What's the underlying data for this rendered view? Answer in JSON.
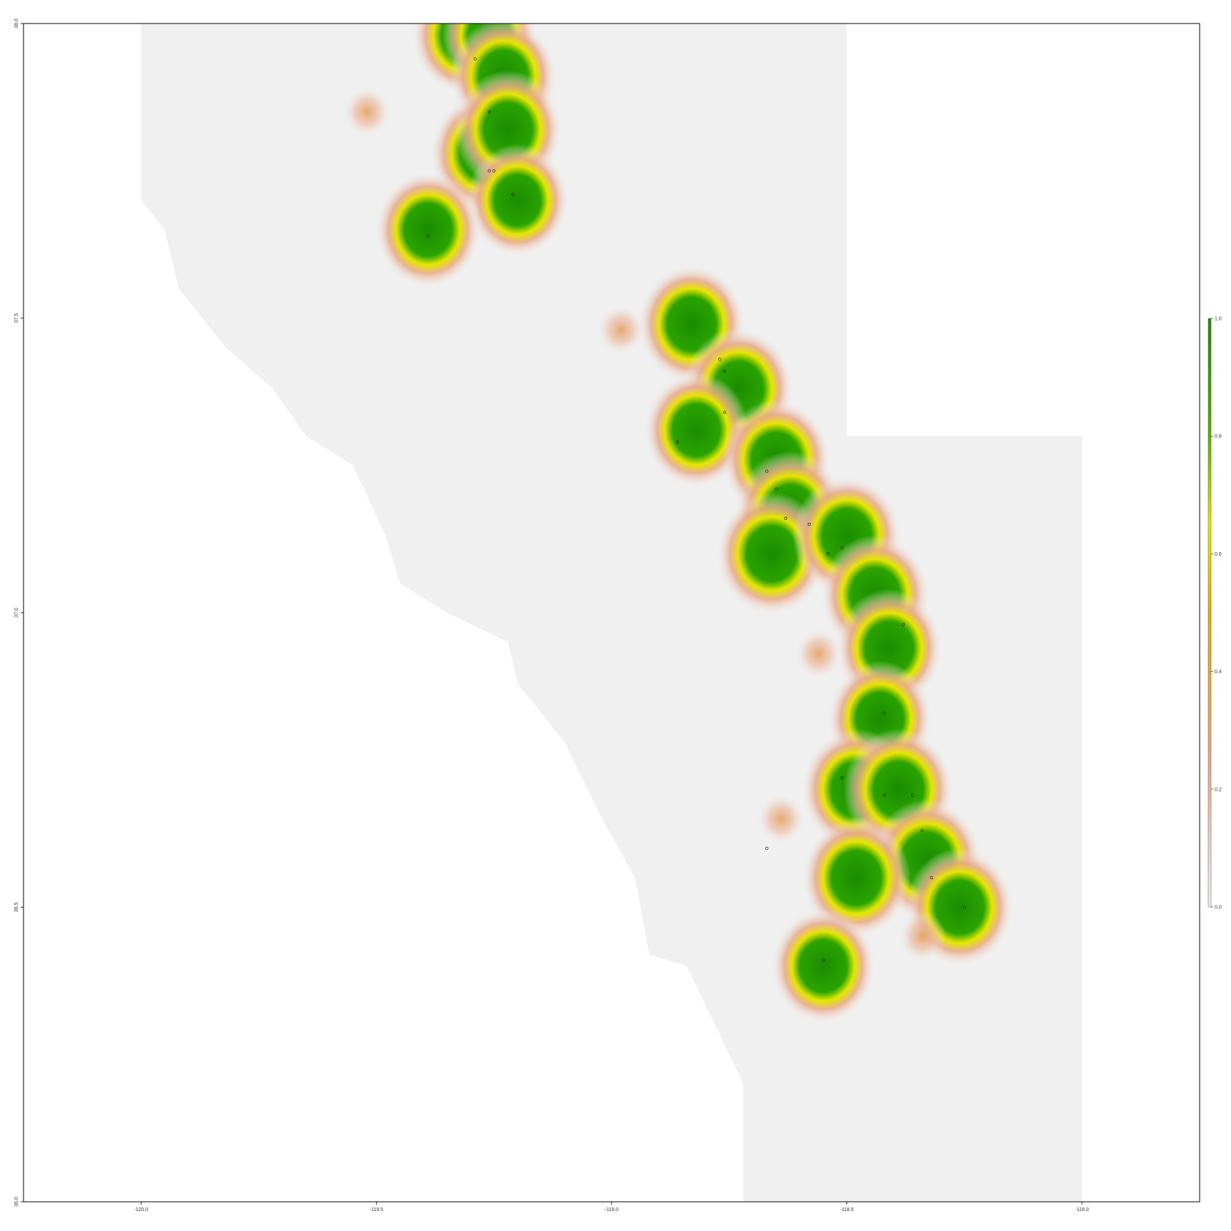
{
  "map": {
    "x_axis": {
      "range": [
        -120.25,
        -117.75
      ],
      "ticks": [
        {
          "value": -120.0,
          "label": "-120.0"
        },
        {
          "value": -119.5,
          "label": "-119.5"
        },
        {
          "value": -119.0,
          "label": "-119.0"
        },
        {
          "value": -118.5,
          "label": "-118.5"
        },
        {
          "value": -118.0,
          "label": "-118.0"
        }
      ]
    },
    "y_axis": {
      "range": [
        36.0,
        38.0
      ],
      "ticks": [
        {
          "value": 36.0,
          "label": "36.0"
        },
        {
          "value": 36.5,
          "label": "36.5"
        },
        {
          "value": 37.0,
          "label": "37.0"
        },
        {
          "value": 37.5,
          "label": "37.5"
        },
        {
          "value": 38.0,
          "label": "38.0"
        }
      ]
    },
    "colors": {
      "raster_background": "#f0f0f0",
      "low": "#e8a98a",
      "mid": "#f2d000",
      "high": "#1a8c00",
      "frame": "#000000"
    },
    "legend": {
      "placement": "right",
      "ticks": [
        {
          "value": 0.0,
          "label": "0.0"
        },
        {
          "value": 0.2,
          "label": "0.2"
        },
        {
          "value": 0.4,
          "label": "0.4"
        },
        {
          "value": 0.6,
          "label": "0.6"
        },
        {
          "value": 0.8,
          "label": "0.8"
        },
        {
          "value": 1.0,
          "label": "1.0"
        }
      ]
    },
    "domain_polygon": [
      [
        -120.0,
        38.0
      ],
      [
        -118.5,
        38.0
      ],
      [
        -118.5,
        37.3
      ],
      [
        -118.0,
        37.3
      ],
      [
        -118.0,
        36.0
      ],
      [
        -118.72,
        36.0
      ],
      [
        -118.72,
        36.2
      ],
      [
        -118.78,
        36.3
      ],
      [
        -118.84,
        36.4
      ],
      [
        -118.92,
        36.42
      ],
      [
        -118.95,
        36.55
      ],
      [
        -119.02,
        36.65
      ],
      [
        -119.1,
        36.78
      ],
      [
        -119.2,
        36.88
      ],
      [
        -119.22,
        36.95
      ],
      [
        -119.35,
        37.0
      ],
      [
        -119.45,
        37.05
      ],
      [
        -119.48,
        37.13
      ],
      [
        -119.55,
        37.25
      ],
      [
        -119.65,
        37.3
      ],
      [
        -119.72,
        37.38
      ],
      [
        -119.82,
        37.45
      ],
      [
        -119.92,
        37.55
      ],
      [
        -119.95,
        37.65
      ],
      [
        -120.0,
        37.7
      ]
    ],
    "suitability_hotspots": [
      {
        "lon": -119.31,
        "lat": 37.98,
        "value": 0.92
      },
      {
        "lon": -119.26,
        "lat": 37.98,
        "value": 0.6
      },
      {
        "lon": -119.23,
        "lat": 37.91,
        "value": 0.9
      },
      {
        "lon": -119.27,
        "lat": 37.78,
        "value": 0.95
      },
      {
        "lon": -119.22,
        "lat": 37.82,
        "value": 0.92
      },
      {
        "lon": -119.2,
        "lat": 37.7,
        "value": 0.8
      },
      {
        "lon": -119.39,
        "lat": 37.65,
        "value": 0.88
      },
      {
        "lon": -118.83,
        "lat": 37.49,
        "value": 0.92
      },
      {
        "lon": -118.73,
        "lat": 37.38,
        "value": 0.98
      },
      {
        "lon": -118.82,
        "lat": 37.31,
        "value": 0.85
      },
      {
        "lon": -118.65,
        "lat": 37.26,
        "value": 0.95
      },
      {
        "lon": -118.62,
        "lat": 37.17,
        "value": 1.0
      },
      {
        "lon": -118.66,
        "lat": 37.1,
        "value": 1.0
      },
      {
        "lon": -118.5,
        "lat": 37.13,
        "value": 0.95
      },
      {
        "lon": -118.44,
        "lat": 37.03,
        "value": 0.95
      },
      {
        "lon": -118.41,
        "lat": 36.94,
        "value": 0.9
      },
      {
        "lon": -118.43,
        "lat": 36.82,
        "value": 0.85
      },
      {
        "lon": -118.48,
        "lat": 36.7,
        "value": 0.98
      },
      {
        "lon": -118.39,
        "lat": 36.7,
        "value": 0.98
      },
      {
        "lon": -118.33,
        "lat": 36.58,
        "value": 0.98
      },
      {
        "lon": -118.26,
        "lat": 36.5,
        "value": 0.92
      },
      {
        "lon": -118.48,
        "lat": 36.55,
        "value": 0.95
      },
      {
        "lon": -118.55,
        "lat": 36.4,
        "value": 0.85
      },
      {
        "lon": -118.98,
        "lat": 37.48,
        "value": 0.45
      },
      {
        "lon": -119.52,
        "lat": 37.85,
        "value": 0.3
      },
      {
        "lon": -118.64,
        "lat": 36.65,
        "value": 0.4
      },
      {
        "lon": -118.34,
        "lat": 36.45,
        "value": 0.3
      },
      {
        "lon": -118.56,
        "lat": 36.93,
        "value": 0.4
      }
    ],
    "occurrence_points": [
      {
        "lon": -119.29,
        "lat": 37.94
      },
      {
        "lon": -119.26,
        "lat": 37.85
      },
      {
        "lon": -119.26,
        "lat": 37.75
      },
      {
        "lon": -119.25,
        "lat": 37.75
      },
      {
        "lon": -119.21,
        "lat": 37.71
      },
      {
        "lon": -119.39,
        "lat": 37.64
      },
      {
        "lon": -118.77,
        "lat": 37.43
      },
      {
        "lon": -118.76,
        "lat": 37.41
      },
      {
        "lon": -118.76,
        "lat": 37.34
      },
      {
        "lon": -118.86,
        "lat": 37.29
      },
      {
        "lon": -118.67,
        "lat": 37.24
      },
      {
        "lon": -118.65,
        "lat": 37.21
      },
      {
        "lon": -118.63,
        "lat": 37.16
      },
      {
        "lon": -118.58,
        "lat": 37.15
      },
      {
        "lon": -118.51,
        "lat": 37.11
      },
      {
        "lon": -118.54,
        "lat": 37.1
      },
      {
        "lon": -118.38,
        "lat": 36.98
      },
      {
        "lon": -118.42,
        "lat": 36.83
      },
      {
        "lon": -118.51,
        "lat": 36.72
      },
      {
        "lon": -118.42,
        "lat": 36.69
      },
      {
        "lon": -118.36,
        "lat": 36.69
      },
      {
        "lon": -118.34,
        "lat": 36.63
      },
      {
        "lon": -118.32,
        "lat": 36.55
      },
      {
        "lon": -118.25,
        "lat": 36.5
      },
      {
        "lon": -118.67,
        "lat": 36.6
      },
      {
        "lon": -118.55,
        "lat": 36.41
      }
    ]
  }
}
